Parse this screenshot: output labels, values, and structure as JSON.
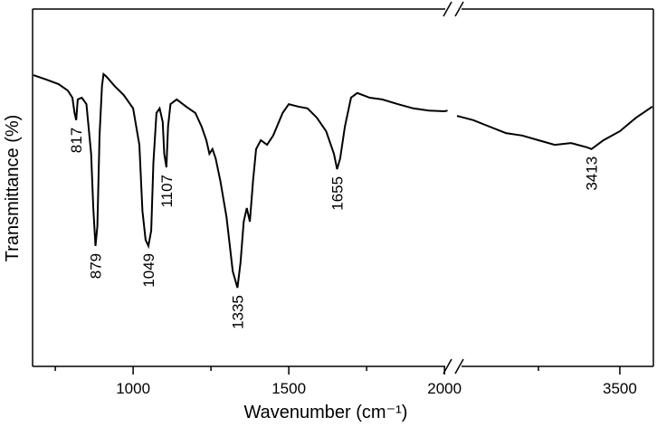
{
  "chart_data": {
    "type": "line",
    "x_label": "Wavenumber (cm⁻¹)",
    "y_label": "Transmittance (%)",
    "color": "#000000",
    "ylim": [
      0,
      100
    ],
    "segments": [
      {
        "xlim": [
          677,
          2017
        ],
        "xticks": [
          1000,
          1500,
          2000
        ],
        "xminor": [
          750,
          1250,
          1750
        ],
        "peaks": [
          817,
          879,
          1049,
          1107,
          1335,
          1655
        ],
        "x": [
          680,
          720,
          760,
          790,
          805,
          812,
          817,
          822,
          835,
          850,
          865,
          872,
          879,
          885,
          892,
          900,
          905,
          915,
          940,
          970,
          1000,
          1020,
          1030,
          1040,
          1049,
          1058,
          1065,
          1075,
          1085,
          1095,
          1100,
          1107,
          1112,
          1120,
          1140,
          1170,
          1200,
          1220,
          1235,
          1245,
          1255,
          1265,
          1280,
          1300,
          1320,
          1335,
          1345,
          1355,
          1365,
          1375,
          1385,
          1395,
          1410,
          1430,
          1450,
          1480,
          1500,
          1530,
          1560,
          1590,
          1620,
          1645,
          1655,
          1665,
          1680,
          1700,
          1720,
          1760,
          1800,
          1850,
          1900,
          1950,
          2000,
          2010
        ],
        "values": [
          81.5,
          80.3,
          79.0,
          77.2,
          75.2,
          70.9,
          68.9,
          74.7,
          75.2,
          73.4,
          59.5,
          44.3,
          33.7,
          39.2,
          64.6,
          78.5,
          81.8,
          81.0,
          78.5,
          75.9,
          72.2,
          62.0,
          43.5,
          35.4,
          33.7,
          38.0,
          57.0,
          70.9,
          72.2,
          68.4,
          59.5,
          55.7,
          67.1,
          73.4,
          74.7,
          72.7,
          70.9,
          67.1,
          63.3,
          59.5,
          60.8,
          58.2,
          51.9,
          41.8,
          26.6,
          22.0,
          29.1,
          40.5,
          44.3,
          40.5,
          51.9,
          60.8,
          63.3,
          62.0,
          64.6,
          70.9,
          73.4,
          72.7,
          72.2,
          69.6,
          65.8,
          59.5,
          55.2,
          58.2,
          67.1,
          75.2,
          76.5,
          75.2,
          74.7,
          73.4,
          72.2,
          71.6,
          71.4,
          71.6
        ]
      },
      {
        "xlim": [
          3000,
          3603
        ],
        "xticks": [
          3500
        ],
        "xminor": [
          3250
        ],
        "peaks": [
          3413
        ],
        "x": [
          3000,
          3050,
          3100,
          3150,
          3200,
          3250,
          3300,
          3350,
          3400,
          3413,
          3450,
          3500,
          3550,
          3600
        ],
        "values": [
          70.1,
          68.9,
          67.1,
          65.3,
          64.6,
          63.3,
          62.0,
          62.5,
          61.3,
          60.8,
          63.3,
          65.8,
          69.6,
          72.7
        ]
      }
    ]
  }
}
